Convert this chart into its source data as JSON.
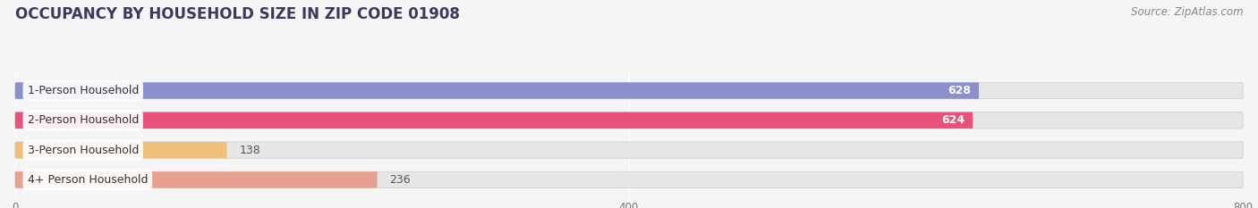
{
  "title": "OCCUPANCY BY HOUSEHOLD SIZE IN ZIP CODE 01908",
  "source": "Source: ZipAtlas.com",
  "categories": [
    "1-Person Household",
    "2-Person Household",
    "3-Person Household",
    "4+ Person Household"
  ],
  "values": [
    628,
    624,
    138,
    236
  ],
  "bar_colors": [
    "#8b8fcc",
    "#e8527a",
    "#f0c07a",
    "#e8a090"
  ],
  "bar_label_colors": [
    "white",
    "white",
    "#666666",
    "#666666"
  ],
  "xlim_max": 800,
  "xticks": [
    0,
    400,
    800
  ],
  "background_color": "#f5f5f5",
  "bar_bg_color": "#e6e6e6",
  "title_fontsize": 12,
  "source_fontsize": 8.5,
  "label_fontsize": 9,
  "value_fontsize": 9,
  "bar_height": 0.55,
  "figsize": [
    14.06,
    2.33
  ],
  "dpi": 100
}
